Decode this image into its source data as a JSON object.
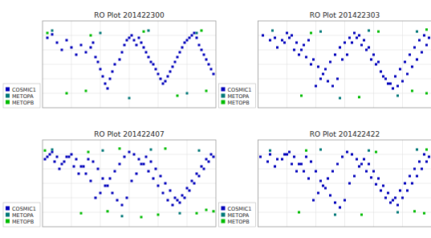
{
  "chart_data": [
    {
      "type": "scatter",
      "title": "RO Plot 201422300",
      "xlim": [
        -180,
        180
      ],
      "ylim": [
        -90,
        90
      ],
      "xticks": [
        -120,
        -60,
        0,
        60,
        120
      ],
      "yticks": [
        -60,
        -30,
        0,
        30,
        60
      ],
      "grid": true,
      "tick_labels": false,
      "legend": "lower left",
      "series": [
        {
          "name": "COSMIC1",
          "color": "#0000bb",
          "marker": "square",
          "x": [
            -170,
            -160,
            -150,
            -140,
            -130,
            -120,
            -110,
            -100,
            -90,
            -80,
            -75,
            -70,
            -65,
            -60,
            -55,
            -50,
            -45,
            -40,
            -35,
            -30,
            -20,
            -15,
            -10,
            -5,
            0,
            5,
            10,
            15,
            20,
            25,
            30,
            35,
            40,
            45,
            50,
            55,
            60,
            65,
            70,
            75,
            80,
            85,
            90,
            95,
            100,
            105,
            110,
            115,
            120,
            125,
            130,
            135,
            140,
            145,
            150,
            155,
            160,
            165,
            170,
            175
          ],
          "values": [
            55,
            62,
            45,
            30,
            50,
            35,
            20,
            40,
            25,
            35,
            45,
            15,
            5,
            -10,
            -25,
            -40,
            -50,
            -30,
            -15,
            0,
            10,
            25,
            40,
            50,
            55,
            60,
            50,
            40,
            55,
            45,
            35,
            25,
            15,
            5,
            0,
            -10,
            -20,
            -30,
            -40,
            -35,
            -25,
            -15,
            -5,
            5,
            15,
            25,
            35,
            45,
            50,
            55,
            60,
            65,
            55,
            40,
            30,
            20,
            10,
            0,
            -10,
            -20
          ]
        },
        {
          "name": "METOPA",
          "color": "#007777",
          "marker": "square",
          "x": [
            -160,
            -60,
            40,
            140,
            0,
            120
          ],
          "values": [
            70,
            65,
            70,
            65,
            -70,
            -60
          ]
        },
        {
          "name": "METOPB",
          "color": "#00bb00",
          "marker": "square",
          "x": [
            -170,
            -80,
            -90,
            30,
            150,
            100,
            -130,
            160
          ],
          "values": [
            65,
            60,
            -55,
            68,
            70,
            -65,
            -60,
            -55
          ]
        }
      ]
    },
    {
      "type": "scatter",
      "title": "RO Plot 201422303",
      "xlim": [
        -180,
        180
      ],
      "ylim": [
        -90,
        90
      ],
      "xticks": [
        -120,
        -60,
        0,
        60,
        120
      ],
      "yticks": [
        -60,
        -30,
        0,
        30,
        60
      ],
      "grid": true,
      "tick_labels": false,
      "legend": "lower left",
      "series": [
        {
          "name": "COSMIC1",
          "color": "#0000bb",
          "marker": "square",
          "x": [
            -170,
            -155,
            -140,
            -125,
            -115,
            -105,
            -95,
            -85,
            -75,
            -65,
            -55,
            -45,
            -35,
            -25,
            -15,
            -5,
            5,
            15,
            25,
            35,
            45,
            55,
            65,
            75,
            85,
            95,
            105,
            115,
            125,
            135,
            145,
            155,
            165,
            175,
            170,
            160,
            150,
            140,
            130,
            120,
            110,
            100,
            90,
            80,
            70,
            60,
            50,
            40,
            30,
            20,
            10,
            0,
            -10,
            -20,
            -30,
            -40,
            -50,
            -60,
            -70,
            -80,
            -90,
            -100,
            -110,
            -120,
            -130,
            -145
          ],
          "values": [
            60,
            50,
            35,
            45,
            55,
            30,
            20,
            40,
            50,
            10,
            -5,
            -20,
            -35,
            -45,
            -30,
            10,
            20,
            45,
            55,
            40,
            30,
            10,
            0,
            -15,
            -30,
            -40,
            -25,
            -10,
            5,
            20,
            35,
            50,
            60,
            55,
            40,
            25,
            10,
            -5,
            -20,
            -35,
            -45,
            -50,
            -40,
            -25,
            5,
            20,
            35,
            50,
            60,
            65,
            55,
            45,
            35,
            20,
            5,
            -10,
            -30,
            -45,
            0,
            15,
            30,
            45,
            60,
            65,
            50,
            55
          ]
        },
        {
          "name": "METOPA",
          "color": "#007777",
          "marker": "square",
          "x": [
            -150,
            -50,
            50,
            150,
            -10,
            110
          ],
          "values": [
            70,
            68,
            70,
            68,
            -70,
            -65
          ]
        },
        {
          "name": "METOPB",
          "color": "#00bb00",
          "marker": "square",
          "x": [
            170,
            70,
            -70,
            170,
            -90,
            30,
            140
          ],
          "values": [
            72,
            68,
            65,
            -60,
            -65,
            -68,
            -55
          ]
        }
      ]
    },
    {
      "type": "scatter",
      "title": "RO Plot 201422407",
      "xlim": [
        -180,
        180
      ],
      "ylim": [
        -90,
        90
      ],
      "xticks": [
        -120,
        -60,
        0,
        60,
        120
      ],
      "yticks": [
        -60,
        -30,
        0,
        30,
        60
      ],
      "grid": true,
      "tick_labels": false,
      "legend": "lower left",
      "series": [
        {
          "name": "COSMIC1",
          "color": "#0000bb",
          "marker": "square",
          "x": [
            -175,
            -165,
            -155,
            -145,
            -135,
            -125,
            -115,
            -105,
            -95,
            -85,
            -75,
            -65,
            -55,
            -45,
            -35,
            -25,
            -15,
            -5,
            5,
            15,
            25,
            35,
            45,
            55,
            65,
            75,
            85,
            95,
            105,
            115,
            125,
            135,
            145,
            155,
            165,
            175,
            170,
            160,
            150,
            140,
            130,
            120,
            110,
            100,
            90,
            80,
            70,
            60,
            50,
            40,
            30,
            20,
            10,
            0,
            -10,
            -20,
            -30,
            -40,
            -50,
            -60,
            -70,
            -80,
            -90,
            -100,
            -110,
            -120,
            -130,
            -140,
            -150,
            -160,
            -170
          ],
          "values": [
            50,
            60,
            45,
            30,
            45,
            55,
            35,
            20,
            35,
            50,
            45,
            30,
            10,
            -5,
            -20,
            -35,
            -45,
            -30,
            5,
            20,
            40,
            55,
            45,
            30,
            15,
            0,
            -15,
            -30,
            -40,
            -30,
            -15,
            0,
            15,
            30,
            45,
            55,
            60,
            50,
            35,
            20,
            5,
            -10,
            -25,
            -35,
            -45,
            -35,
            -20,
            -5,
            10,
            25,
            40,
            50,
            60,
            65,
            55,
            40,
            25,
            10,
            -5,
            -20,
            -30,
            5,
            20,
            35,
            50,
            60,
            55,
            40,
            55,
            65,
            55
          ]
        },
        {
          "name": "METOPA",
          "color": "#007777",
          "marker": "square",
          "x": [
            -160,
            -55,
            45,
            145,
            -15,
            105
          ],
          "values": [
            70,
            68,
            70,
            68,
            -68,
            -62
          ]
        },
        {
          "name": "METOPB",
          "color": "#00bb00",
          "marker": "square",
          "x": [
            -175,
            75,
            -85,
            175,
            -100,
            25,
            140,
            -20,
            160,
            -45,
            60
          ],
          "values": [
            68,
            72,
            65,
            -58,
            -62,
            -70,
            -62,
            72,
            -55,
            -58,
            -65
          ]
        }
      ]
    },
    {
      "type": "scatter",
      "title": "RO Plot 201422422",
      "xlim": [
        -180,
        180
      ],
      "ylim": [
        -90,
        90
      ],
      "xticks": [
        -120,
        -60,
        0,
        60,
        120
      ],
      "yticks": [
        -60,
        -30,
        0,
        30,
        60
      ],
      "grid": true,
      "tick_labels": false,
      "legend": "lower left",
      "series": [
        {
          "name": "COSMIC1",
          "color": "#0000bb",
          "marker": "square",
          "x": [
            -175,
            -160,
            -145,
            -130,
            -120,
            -110,
            -100,
            -90,
            -80,
            -70,
            -60,
            -50,
            -40,
            -30,
            -20,
            -10,
            0,
            10,
            20,
            30,
            40,
            50,
            60,
            70,
            80,
            90,
            100,
            110,
            120,
            130,
            140,
            150,
            160,
            170,
            175,
            165,
            155,
            145,
            135,
            125,
            115,
            105,
            95,
            85,
            75,
            65,
            55,
            45,
            35,
            25,
            15,
            5,
            -5,
            -15,
            -25,
            -35,
            -45,
            -55,
            -65,
            -75,
            -85,
            -95,
            -105,
            -115,
            -125,
            -140,
            -155
          ],
          "values": [
            55,
            45,
            35,
            50,
            60,
            40,
            25,
            40,
            55,
            45,
            25,
            5,
            -10,
            -25,
            -40,
            -50,
            -35,
            0,
            15,
            35,
            50,
            40,
            25,
            10,
            -5,
            -20,
            -35,
            -45,
            -30,
            -15,
            0,
            15,
            30,
            45,
            55,
            60,
            45,
            30,
            15,
            0,
            -15,
            -30,
            -40,
            -30,
            -15,
            -2,
            12,
            25,
            40,
            50,
            60,
            65,
            55,
            40,
            25,
            10,
            -5,
            -20,
            -35,
            10,
            25,
            40,
            55,
            65,
            60,
            50,
            60
          ]
        },
        {
          "name": "METOPA",
          "color": "#007777",
          "marker": "square",
          "x": [
            -155,
            -50,
            50,
            150,
            -20,
            110
          ],
          "values": [
            68,
            70,
            68,
            70,
            -65,
            -60
          ]
        },
        {
          "name": "METOPB",
          "color": "#00bb00",
          "marker": "square",
          "x": [
            170,
            65,
            -80,
            165,
            -95,
            35,
            145
          ],
          "values": [
            70,
            65,
            68,
            -62,
            -60,
            -65,
            -58
          ]
        }
      ]
    }
  ]
}
